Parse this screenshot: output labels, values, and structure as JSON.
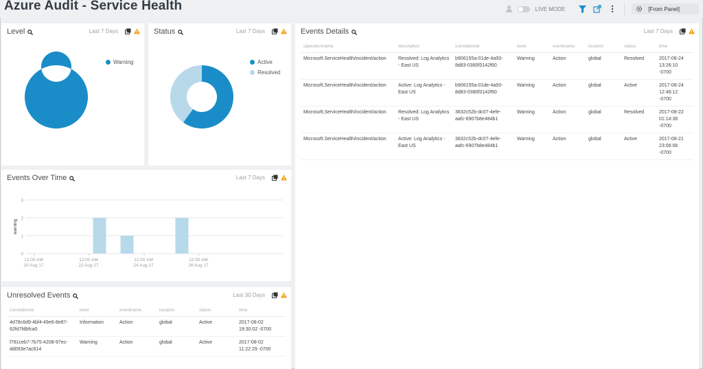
{
  "header": {
    "title": "Azure Audit - Service Health",
    "live_mode_label": "LIVE MODE",
    "panel_select_label": "[From Panel]"
  },
  "colors": {
    "primary": "#1a8dc8",
    "light": "#b7d9ea",
    "warning_icon": "#f39c12"
  },
  "panels": {
    "level": {
      "title": "Level",
      "range": "Last 7 Days",
      "legend": [
        {
          "label": "Warning",
          "color": "#1a8dc8"
        }
      ],
      "chart_data": {
        "type": "pie",
        "categories": [
          "Warning"
        ],
        "values": [
          4
        ]
      }
    },
    "status": {
      "title": "Status",
      "range": "Last 7 Days",
      "legend": [
        {
          "label": "Active",
          "color": "#1a8dc8"
        },
        {
          "label": "Resolved",
          "color": "#b7d9ea"
        }
      ],
      "chart_data": {
        "type": "pie",
        "categories": [
          "Active",
          "Resolved"
        ],
        "values": [
          2,
          2
        ]
      }
    },
    "events_over_time": {
      "title": "Events Over Time",
      "range": "Last 7 Days",
      "chart_data": {
        "type": "bar",
        "ylabel": "warning",
        "ylim": [
          0,
          3
        ],
        "yticks": [
          "0",
          "1",
          "2",
          "3"
        ],
        "x_tick_labels": [
          {
            "time": "12:00 AM",
            "date": "20 Aug 17"
          },
          {
            "time": "12:00 AM",
            "date": "22 Aug 17"
          },
          {
            "time": "12:00 AM",
            "date": "24 Aug 17"
          },
          {
            "time": "12:00 AM",
            "date": "26 Aug 17"
          }
        ],
        "categories": [
          "2017-08-20",
          "2017-08-21",
          "2017-08-22",
          "2017-08-23",
          "2017-08-24",
          "2017-08-25",
          "2017-08-26",
          "2017-08-27"
        ],
        "values": [
          0,
          2,
          1,
          0,
          2,
          0,
          0,
          0
        ]
      }
    },
    "events_details": {
      "title": "Events Details",
      "range": "Last 7 Days",
      "columns": [
        "operationname",
        "description",
        "correlationid",
        "level",
        "eventname",
        "location",
        "status",
        "time"
      ],
      "rows": [
        [
          "Microsoft.ServiceHealth/incident/action",
          "Resolved: Log Analytics - East US",
          "b906155a-01de-4a93-8d83-0380f3142f60",
          "Warning",
          "Action",
          "global",
          "Resolved",
          "2017-08-24 13:26:10 -0700"
        ],
        [
          "Microsoft.ServiceHealth/incident/action",
          "Active: Log Analytics - East US",
          "b906155a-01de-4a93-8d83-0380f3142f60",
          "Warning",
          "Action",
          "global",
          "Active",
          "2017-08-24 12:46:12 -0700"
        ],
        [
          "Microsoft.ServiceHealth/incident/action",
          "Resolved: Log Analytics - East US",
          "3832c52b-dc07-4efe-aafc-6907b8e484b1",
          "Warning",
          "Action",
          "global",
          "Resolved",
          "2017-08-22 01:14:36 -0700"
        ],
        [
          "Microsoft.ServiceHealth/incident/action",
          "Active: Log Analytics - East US",
          "3832c52b-dc07-4efe-aafc-6907b8e484b1",
          "Warning",
          "Action",
          "global",
          "Active",
          "2017-08-21 23:06:06 -0700"
        ]
      ]
    },
    "unresolved_events": {
      "title": "Unresolved Events",
      "range": "Last 30 Days",
      "columns": [
        "correlationid",
        "level",
        "eventname",
        "location",
        "status",
        "time"
      ],
      "rows": [
        [
          "4d78c6d9-4bf4-49e6-8e87-62fd7fdbfca0",
          "Information",
          "Action",
          "global",
          "Active",
          "2017-08-02 19:30:02 -0700"
        ],
        [
          "f781ceb7-7b75-4208-97ec-dd093e7ac614",
          "Warning",
          "Action",
          "global",
          "Active",
          "2017-08-02 11:22:29 -0700"
        ]
      ]
    }
  }
}
